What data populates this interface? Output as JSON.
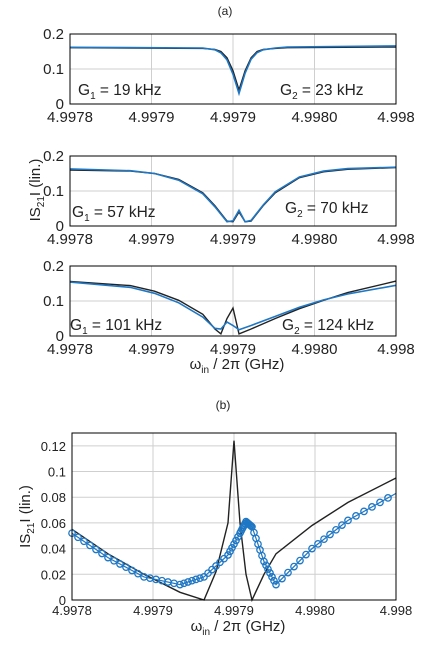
{
  "panel_labels": [
    "(a)",
    "(b)"
  ],
  "colors": {
    "measured": "#1f77c4",
    "theory": "#222222",
    "grid": "#cfcfcf",
    "frame": "#000000"
  },
  "chart_data": [
    {
      "type": "line",
      "panel": "(a)",
      "xlim": [
        4.99775,
        4.99802
      ],
      "ylim": [
        0,
        0.2
      ],
      "xticks": [
        "4.9978",
        "4.9979",
        "4.9979",
        "4.9980",
        "4.998"
      ],
      "yticks": [
        "0",
        "0.1",
        "0.2"
      ],
      "grid": true,
      "annotations": [
        "G₁ = 19 kHz",
        "G₂ = 23 kHz"
      ],
      "series": [
        {
          "x": [
            4.99775,
            4.99786,
            4.99787,
            4.997875,
            4.99788,
            4.997885,
            4.99789,
            4.997895,
            4.9979,
            4.997905,
            4.99791,
            4.99792,
            4.99793,
            4.99802
          ],
          "theory": [
            0.161,
            0.159,
            0.156,
            0.15,
            0.132,
            0.095,
            0.04,
            0.095,
            0.132,
            0.15,
            0.156,
            0.159,
            0.161,
            0.163
          ],
          "measured": [
            0.162,
            0.16,
            0.155,
            0.146,
            0.126,
            0.085,
            0.03,
            0.088,
            0.128,
            0.147,
            0.155,
            0.16,
            0.163,
            0.166
          ]
        }
      ]
    },
    {
      "type": "line",
      "panel": "(a)",
      "xlim": [
        4.99775,
        4.99802
      ],
      "ylim": [
        0,
        0.2
      ],
      "xticks": [
        "4.9978",
        "4.9979",
        "4.9979",
        "4.9980",
        "4.998"
      ],
      "yticks": [
        "0",
        "0.1",
        "0.2"
      ],
      "grid": true,
      "ylabel": "IS₂₁I (lin.)",
      "annotations": [
        "G₁ = 57 kHz",
        "G₂ = 70 kHz"
      ],
      "series": [
        {
          "x": [
            4.99775,
            4.9978,
            4.99782,
            4.99784,
            4.99786,
            4.99787,
            4.99788,
            4.997885,
            4.99789,
            4.997895,
            4.9979,
            4.99791,
            4.99792,
            4.99794,
            4.99796,
            4.99798,
            4.99802
          ],
          "theory": [
            0.16,
            0.157,
            0.15,
            0.133,
            0.095,
            0.058,
            0.014,
            0.012,
            0.04,
            0.012,
            0.014,
            0.058,
            0.095,
            0.138,
            0.155,
            0.162,
            0.167
          ],
          "measured": [
            0.163,
            0.158,
            0.15,
            0.131,
            0.092,
            0.055,
            0.012,
            0.015,
            0.045,
            0.012,
            0.016,
            0.06,
            0.098,
            0.14,
            0.157,
            0.164,
            0.168
          ]
        }
      ]
    },
    {
      "type": "line",
      "panel": "(a)",
      "xlim": [
        4.99775,
        4.99802
      ],
      "ylim": [
        0,
        0.2
      ],
      "xticks": [
        "4.9978",
        "4.9979",
        "4.9979",
        "4.9980",
        "4.998"
      ],
      "yticks": [
        "0",
        "0.1",
        "0.2"
      ],
      "grid": true,
      "xlabel": "ωin / 2π (GHz)",
      "annotations": [
        "G₁ = 101 kHz",
        "G₂ = 124 kHz"
      ],
      "series": [
        {
          "x": [
            4.99775,
            4.9978,
            4.99782,
            4.99784,
            4.99786,
            4.99787,
            4.997875,
            4.99788,
            4.997885,
            4.99789,
            4.9979,
            4.99792,
            4.99794,
            4.99796,
            4.99798,
            4.99802
          ],
          "theory": [
            0.156,
            0.144,
            0.128,
            0.102,
            0.062,
            0.02,
            0.006,
            0.05,
            0.08,
            0.006,
            0.02,
            0.05,
            0.078,
            0.102,
            0.124,
            0.157
          ],
          "measured": [
            0.154,
            0.139,
            0.122,
            0.095,
            0.054,
            0.022,
            0.02,
            0.04,
            0.03,
            0.018,
            0.03,
            0.056,
            0.082,
            0.103,
            0.12,
            0.145
          ]
        }
      ]
    },
    {
      "type": "line",
      "panel": "(b)",
      "xlim": [
        4.99775,
        4.99802
      ],
      "ylim": [
        0,
        0.13
      ],
      "xticks": [
        "4.9978",
        "4.9979",
        "4.9979",
        "4.9980",
        "4.998"
      ],
      "yticks": [
        "0",
        "0.02",
        "0.04",
        "0.06",
        "0.08",
        "0.1",
        "0.12"
      ],
      "grid": true,
      "xlabel": "ωin / 2π (GHz)",
      "ylabel": "IS₂₁I (lin.)",
      "series": [
        {
          "name": "",
          "x": [
            4.99775,
            4.99778,
            4.99781,
            4.99784,
            4.99786,
            4.99787,
            4.99788,
            4.997885,
            4.99789,
            4.997895,
            4.9979,
            4.99791,
            4.99792,
            4.99795,
            4.99798,
            4.99802
          ],
          "theory": [
            0.055,
            0.036,
            0.02,
            0.006,
            0.0,
            0.022,
            0.06,
            0.124,
            0.06,
            0.02,
            0.0,
            0.02,
            0.036,
            0.058,
            0.076,
            0.095
          ]
        },
        {
          "name": "",
          "x": [
            4.99775,
            4.99778,
            4.99781,
            4.99784,
            4.99786,
            4.99788,
            4.99789,
            4.997895,
            4.9979,
            4.99791,
            4.99792,
            4.99795,
            4.99798,
            4.99802
          ],
          "measured": [
            0.052,
            0.033,
            0.018,
            0.012,
            0.018,
            0.035,
            0.052,
            0.061,
            0.057,
            0.03,
            0.012,
            0.04,
            0.062,
            0.083
          ]
        }
      ]
    }
  ]
}
